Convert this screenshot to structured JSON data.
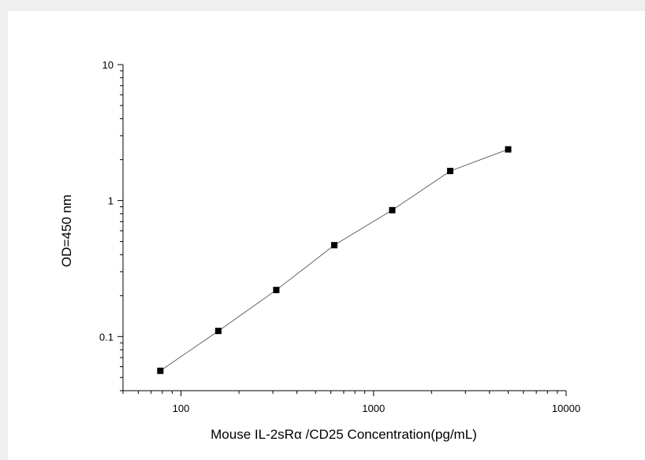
{
  "chart_data": {
    "type": "line",
    "xlabel": "Mouse IL-2sRα /CD25 Concentration(pg/mL)",
    "ylabel": "OD=450 nm",
    "x_scale": "log",
    "y_scale": "log",
    "xlim": [
      50,
      10000
    ],
    "ylim": [
      0.04,
      10
    ],
    "x_ticks": [
      {
        "value": 100,
        "label": "100"
      },
      {
        "value": 1000,
        "label": "1000"
      },
      {
        "value": 10000,
        "label": "10000"
      }
    ],
    "y_ticks": [
      {
        "value": 0.1,
        "label": "0.1"
      },
      {
        "value": 1,
        "label": "1"
      },
      {
        "value": 10,
        "label": "10"
      }
    ],
    "grid": false,
    "legend": "none",
    "marker": "square",
    "series": [
      {
        "x": [
          78.125,
          156.25,
          312.5,
          625,
          1250,
          2500,
          5000
        ],
        "y": [
          0.056,
          0.11,
          0.22,
          0.47,
          0.85,
          1.65,
          2.38
        ]
      }
    ],
    "colors": {
      "line": "#555555",
      "marker": "#000000",
      "axis": "#000000"
    }
  }
}
